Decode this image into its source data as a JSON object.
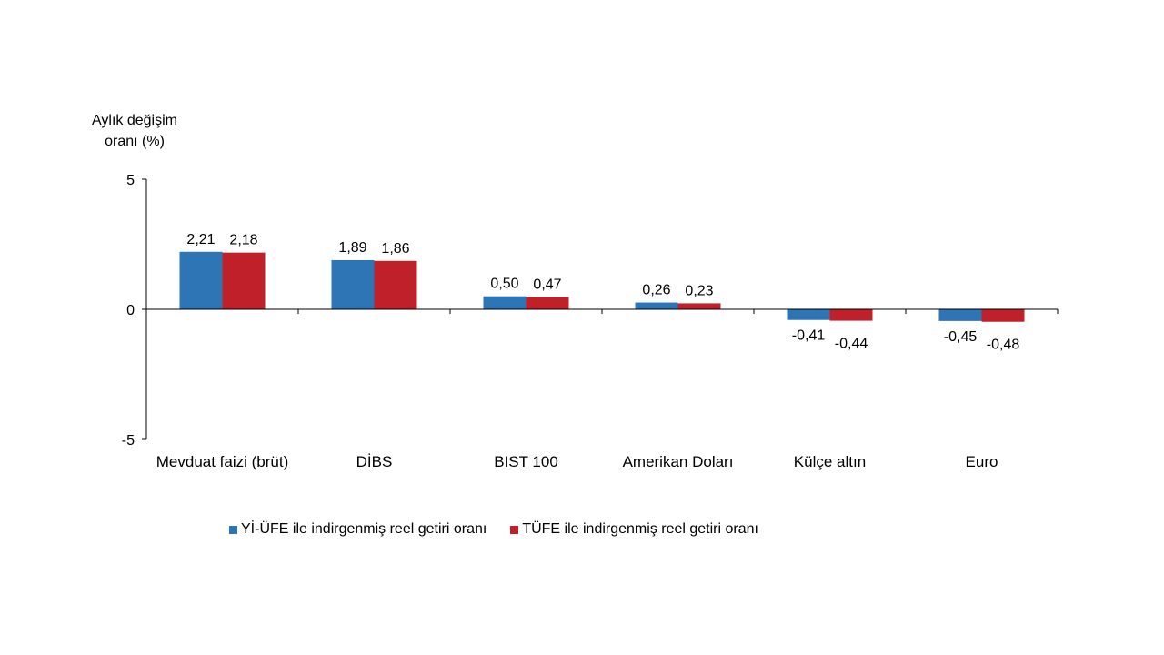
{
  "chart_data": {
    "type": "bar",
    "ylabel_lines": [
      "Aylık değişim",
      "oranı (%)"
    ],
    "ylim": [
      -5,
      5
    ],
    "yticks": [
      {
        "value": 5,
        "label": "5"
      },
      {
        "value": 0,
        "label": "0"
      },
      {
        "value": -5,
        "label": "-5"
      }
    ],
    "categories": [
      "Mevduat faizi (brüt)",
      "DİBS",
      "BIST 100",
      "Amerikan Doları",
      "Külçe altın",
      "Euro"
    ],
    "series": [
      {
        "name": "Yİ-ÜFE ile indirgenmiş reel getiri oranı",
        "color": "#2E75B6",
        "values": [
          2.21,
          1.89,
          0.5,
          0.26,
          -0.41,
          -0.45
        ],
        "labels": [
          "2,21",
          "1,89",
          "0,50",
          "0,26",
          "-0,41",
          "-0,45"
        ]
      },
      {
        "name": "TÜFE ile indirgenmiş reel getiri oranı",
        "color": "#C0202A",
        "values": [
          2.18,
          1.86,
          0.47,
          0.23,
          -0.44,
          -0.48
        ],
        "labels": [
          "2,18",
          "1,86",
          "0,47",
          "0,23",
          "-0,44",
          "-0,48"
        ]
      }
    ],
    "legend_position": "bottom",
    "grid": false
  }
}
